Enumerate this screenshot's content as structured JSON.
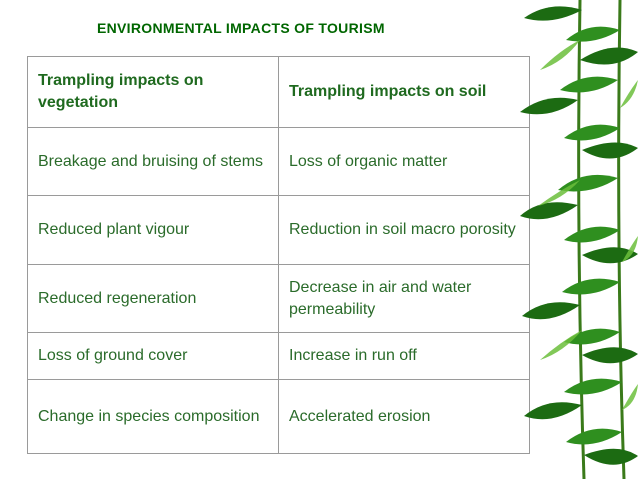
{
  "slide": {
    "title": "ENVIRONMENTAL IMPACTS OF TOURISM"
  },
  "table": {
    "headers": [
      "Trampling impacts on vegetation",
      "Trampling impacts on soil"
    ],
    "rows": [
      [
        "Breakage and bruising of stems",
        "Loss of organic matter"
      ],
      [
        "Reduced plant vigour",
        "Reduction in soil macro porosity"
      ],
      [
        "Reduced regeneration",
        "Decrease in air and water permeability"
      ],
      [
        "Loss of ground cover",
        "Increase in run off"
      ],
      [
        "Change in species composition",
        "Accelerated erosion"
      ]
    ]
  },
  "colors": {
    "title": "#006600",
    "table_text": "#2a6b2a",
    "table_border": "#9a9a9a",
    "leaf_dark": "#1c6b12",
    "leaf_mid": "#2f8f1f",
    "leaf_light": "#6cbf3c"
  },
  "decoration": {
    "right_border_icon": "bamboo-leaves-icon"
  }
}
